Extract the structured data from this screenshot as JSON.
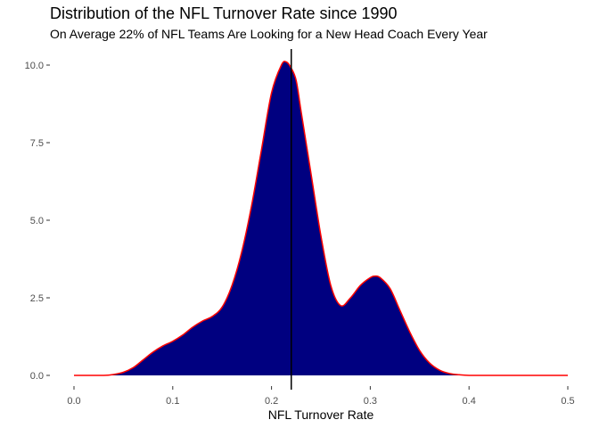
{
  "chart_data": {
    "type": "area",
    "title": "Distribution of the NFL Turnover Rate since 1990",
    "subtitle": "On Average 22% of NFL Teams Are Looking for a New Head Coach Every Year",
    "xlabel": "NFL Turnover Rate",
    "ylabel": "",
    "xlim": [
      0.0,
      0.5
    ],
    "ylim": [
      0.0,
      10.0
    ],
    "x_ticks": [
      "0.0",
      "0.1",
      "0.2",
      "0.3",
      "0.4",
      "0.5"
    ],
    "y_ticks": [
      "0.0",
      "2.5",
      "5.0",
      "7.5",
      "10.0"
    ],
    "grid": false,
    "fill_color": "#000080",
    "line_color": "#ff0000",
    "vline": {
      "x": 0.22,
      "color": "#000000"
    },
    "series": [
      {
        "x": [
          0.0,
          0.03,
          0.04,
          0.05,
          0.06,
          0.07,
          0.08,
          0.09,
          0.1,
          0.11,
          0.12,
          0.13,
          0.14,
          0.15,
          0.16,
          0.17,
          0.18,
          0.19,
          0.2,
          0.21,
          0.215,
          0.22,
          0.225,
          0.23,
          0.24,
          0.25,
          0.26,
          0.27,
          0.28,
          0.29,
          0.3,
          0.305,
          0.31,
          0.32,
          0.33,
          0.34,
          0.35,
          0.36,
          0.37,
          0.38,
          0.39,
          0.4,
          0.42,
          0.45,
          0.5
        ],
        "y": [
          0.0,
          0.0,
          0.03,
          0.1,
          0.25,
          0.5,
          0.75,
          0.95,
          1.1,
          1.3,
          1.55,
          1.75,
          1.9,
          2.2,
          2.9,
          4.0,
          5.5,
          7.3,
          9.1,
          10.0,
          10.1,
          9.9,
          9.5,
          8.5,
          6.5,
          4.5,
          2.9,
          2.25,
          2.5,
          2.9,
          3.15,
          3.2,
          3.15,
          2.8,
          2.1,
          1.4,
          0.8,
          0.4,
          0.17,
          0.06,
          0.02,
          0.0,
          0.0,
          0.0,
          0.0
        ]
      }
    ]
  }
}
